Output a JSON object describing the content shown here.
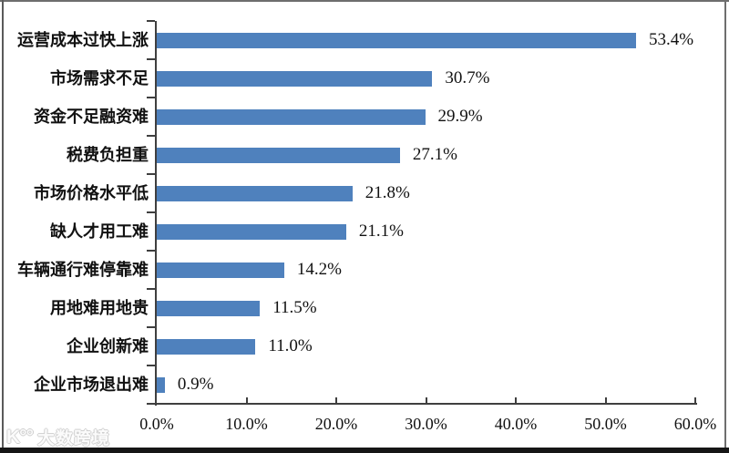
{
  "chart_data": {
    "type": "bar",
    "orientation": "horizontal",
    "title": "",
    "xlabel": "",
    "ylabel": "",
    "categories": [
      "运营成本过快上涨",
      "市场需求不足",
      "资金不足融资难",
      "税费负担重",
      "市场价格水平低",
      "缺人才用工难",
      "车辆通行难停靠难",
      "用地难用地贵",
      "企业创新难",
      "企业市场退出难"
    ],
    "values": [
      53.4,
      30.7,
      29.9,
      27.1,
      21.8,
      21.1,
      14.2,
      11.5,
      11.0,
      0.9
    ],
    "value_labels": [
      "53.4%",
      "30.7%",
      "29.9%",
      "27.1%",
      "21.8%",
      "21.1%",
      "14.2%",
      "11.5%",
      "11.0%",
      "0.9%"
    ],
    "xlim": [
      0,
      60
    ],
    "x_ticks": [
      "0.0%",
      "10.0%",
      "20.0%",
      "30.0%",
      "40.0%",
      "50.0%",
      "60.0%"
    ],
    "grid": false,
    "legend": false,
    "bar_color": "#4f81bd",
    "axis_color": "#3f3f3f"
  },
  "watermark": {
    "logo": "K°°",
    "text": "大数跨境"
  }
}
